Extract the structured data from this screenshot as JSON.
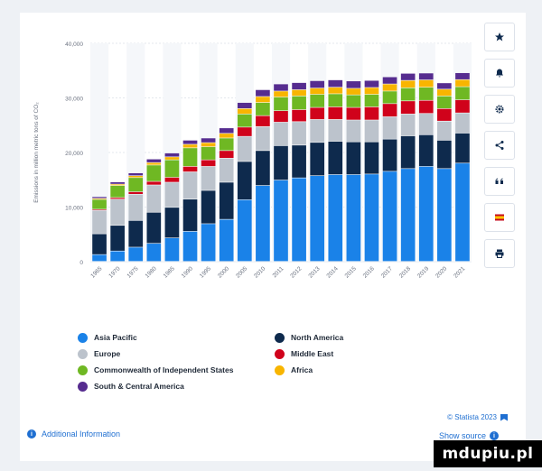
{
  "chart_data": {
    "type": "bar",
    "stacked": true,
    "ylabel": "Emissions in million metric tons of CO₂",
    "ylim": [
      0,
      40000
    ],
    "yticks": [
      "0",
      "10,000",
      "20,000",
      "30,000",
      "40,000"
    ],
    "ytick_values": [
      0,
      10000,
      20000,
      30000,
      40000
    ],
    "categories": [
      "1965",
      "1970",
      "1975",
      "1980",
      "1985",
      "1990",
      "1995",
      "2000",
      "2005",
      "2010",
      "2011",
      "2012",
      "2013",
      "2014",
      "2015",
      "2016",
      "2017",
      "2018",
      "2019",
      "2020",
      "2021"
    ],
    "series": [
      {
        "name": "Asia Pacific",
        "color": "#1a82e8",
        "values": [
          1250,
          1900,
          2600,
          3300,
          4300,
          5500,
          6900,
          7700,
          11300,
          13900,
          14900,
          15300,
          15700,
          15900,
          15900,
          16000,
          16500,
          17000,
          17400,
          17000,
          18000
        ]
      },
      {
        "name": "North America",
        "color": "#0e2a4d",
        "values": [
          3800,
          4700,
          4900,
          5700,
          5600,
          5900,
          6100,
          6800,
          7000,
          6400,
          6300,
          6000,
          6100,
          6100,
          6000,
          5900,
          5900,
          6000,
          5800,
          5200,
          5500
        ]
      },
      {
        "name": "Europe",
        "color": "#bcc3cc",
        "values": [
          4300,
          4800,
          4800,
          5000,
          4600,
          5000,
          4400,
          4400,
          4600,
          4400,
          4300,
          4300,
          4200,
          4000,
          4000,
          4000,
          4100,
          4000,
          3900,
          3500,
          3700
        ]
      },
      {
        "name": "Middle East",
        "color": "#d0021b",
        "values": [
          200,
          300,
          450,
          650,
          900,
          1000,
          1200,
          1400,
          1700,
          2000,
          2100,
          2200,
          2200,
          2300,
          2300,
          2400,
          2400,
          2400,
          2400,
          2300,
          2400
        ]
      },
      {
        "name": "Commonwealth of Independent States",
        "color": "#6fb823",
        "values": [
          1800,
          2200,
          2600,
          3000,
          3200,
          3400,
          2400,
          2300,
          2400,
          2400,
          2500,
          2500,
          2400,
          2400,
          2300,
          2300,
          2300,
          2400,
          2400,
          2300,
          2400
        ]
      },
      {
        "name": "Africa",
        "color": "#f8b500",
        "values": [
          200,
          250,
          350,
          450,
          550,
          650,
          750,
          850,
          1000,
          1100,
          1100,
          1150,
          1150,
          1200,
          1200,
          1250,
          1300,
          1350,
          1350,
          1250,
          1300
        ]
      },
      {
        "name": "South & Central America",
        "color": "#562c8f",
        "values": [
          300,
          400,
          500,
          650,
          700,
          750,
          850,
          1000,
          1100,
          1250,
          1300,
          1300,
          1350,
          1350,
          1350,
          1300,
          1300,
          1300,
          1250,
          1150,
          1250
        ]
      }
    ]
  },
  "legend": [
    {
      "label": "Asia Pacific",
      "color": "#1a82e8"
    },
    {
      "label": "North America",
      "color": "#0e2a4d"
    },
    {
      "label": "Europe",
      "color": "#bcc3cc"
    },
    {
      "label": "Middle East",
      "color": "#d0021b"
    },
    {
      "label": "Commonwealth of Independent States",
      "color": "#6fb823"
    },
    {
      "label": "Africa",
      "color": "#f8b500"
    },
    {
      "label": "South & Central America",
      "color": "#562c8f"
    }
  ],
  "credit": "© Statista 2023",
  "additional_info": "Additional Information",
  "show_source": "Show source",
  "watermark": "mdupiu.pl",
  "toolbar": [
    "star-icon",
    "bell-icon",
    "gear-icon",
    "share-icon",
    "quote-icon",
    "flag-es-icon",
    "print-icon"
  ]
}
